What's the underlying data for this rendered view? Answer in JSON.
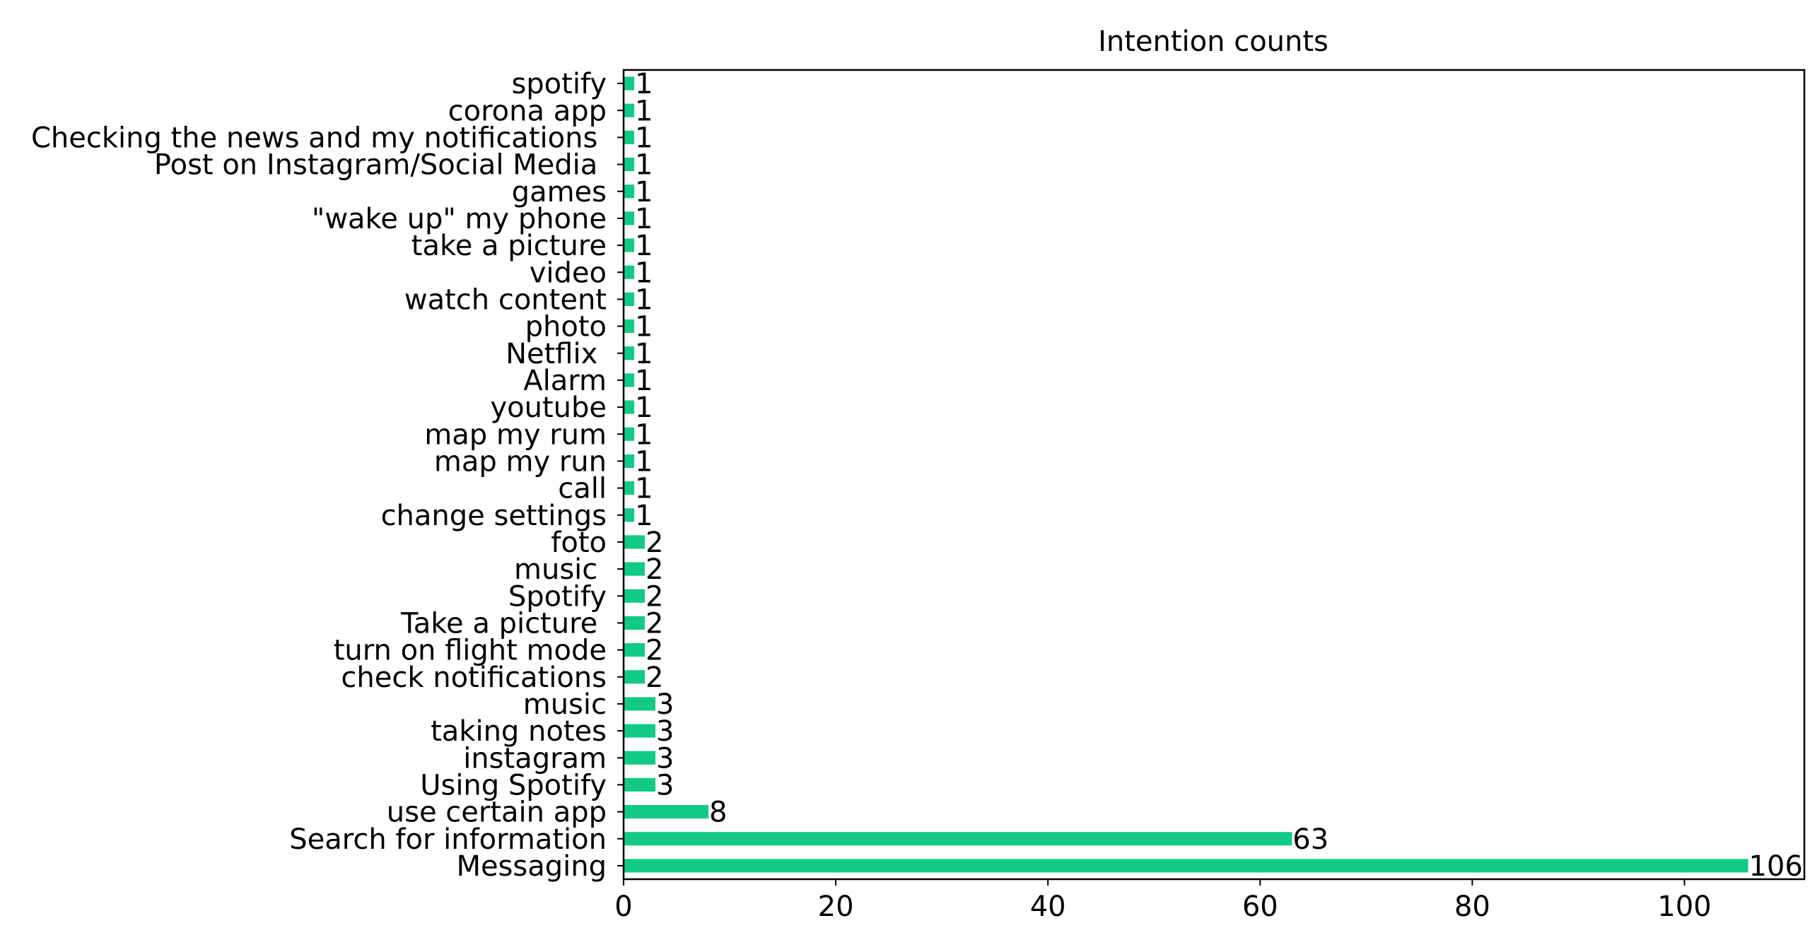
{
  "chart_data": {
    "type": "bar",
    "orientation": "horizontal",
    "title": "Intention counts",
    "xlabel": "",
    "ylabel": "",
    "xlim": [
      0,
      111.3
    ],
    "xticks": [
      0,
      20,
      40,
      60,
      80,
      100
    ],
    "grid": false,
    "legend": "none",
    "bar_color": "#12c986",
    "categories": [
      "spotify",
      "corona app",
      "Checking the news and my notifications ",
      "Post on Instagram/Social Media ",
      "games",
      "\"wake up\" my phone",
      "take a picture",
      "video",
      "watch content",
      "photo",
      "Netflix ",
      "Alarm",
      "youtube",
      "map my rum",
      "map my run",
      "call",
      "change settings",
      "foto",
      "music ",
      "Spotify",
      "Take a picture ",
      "turn on flight mode",
      "check notifications",
      "music",
      "taking notes",
      "instagram",
      "Using Spotify",
      "use certain app",
      "Search for information",
      "Messaging"
    ],
    "values": [
      1,
      1,
      1,
      1,
      1,
      1,
      1,
      1,
      1,
      1,
      1,
      1,
      1,
      1,
      1,
      1,
      1,
      2,
      2,
      2,
      2,
      2,
      2,
      3,
      3,
      3,
      3,
      8,
      63,
      106
    ]
  }
}
